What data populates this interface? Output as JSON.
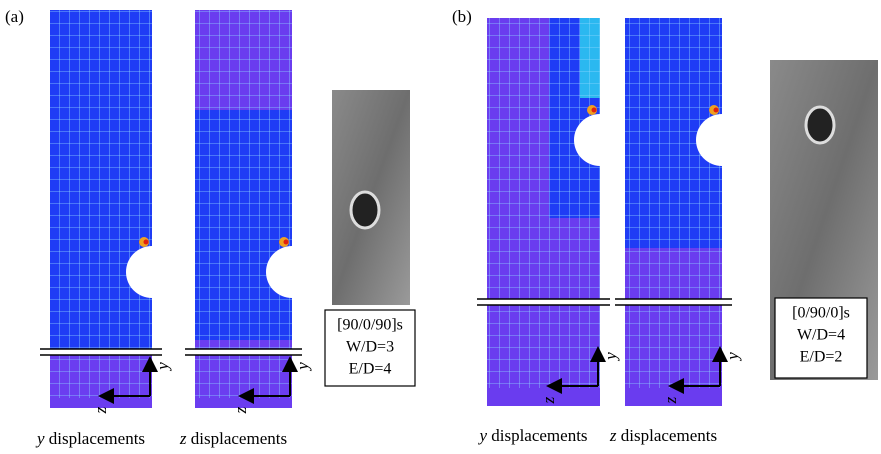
{
  "panels": [
    {
      "label": "(a)",
      "plots": [
        {
          "axis_y": "y",
          "axis_z": "z",
          "caption_var": "y",
          "caption": "displacements"
        },
        {
          "axis_y": "y",
          "axis_z": "z",
          "caption_var": "z",
          "caption": "displacements"
        }
      ],
      "specimen": {
        "layup": "[90/0/90]s",
        "width_ratio": "W/D=3",
        "edge_ratio": "E/D=4"
      }
    },
    {
      "label": "(b)",
      "plots": [
        {
          "axis_y": "y",
          "axis_z": "z",
          "caption_var": "y",
          "caption": "displacements"
        },
        {
          "axis_y": "y",
          "axis_z": "z",
          "caption_var": "z",
          "caption": "displacements"
        }
      ],
      "specimen": {
        "layup": "[0/90/0]s",
        "width_ratio": "W/D=4",
        "edge_ratio": "E/D=2"
      }
    }
  ]
}
